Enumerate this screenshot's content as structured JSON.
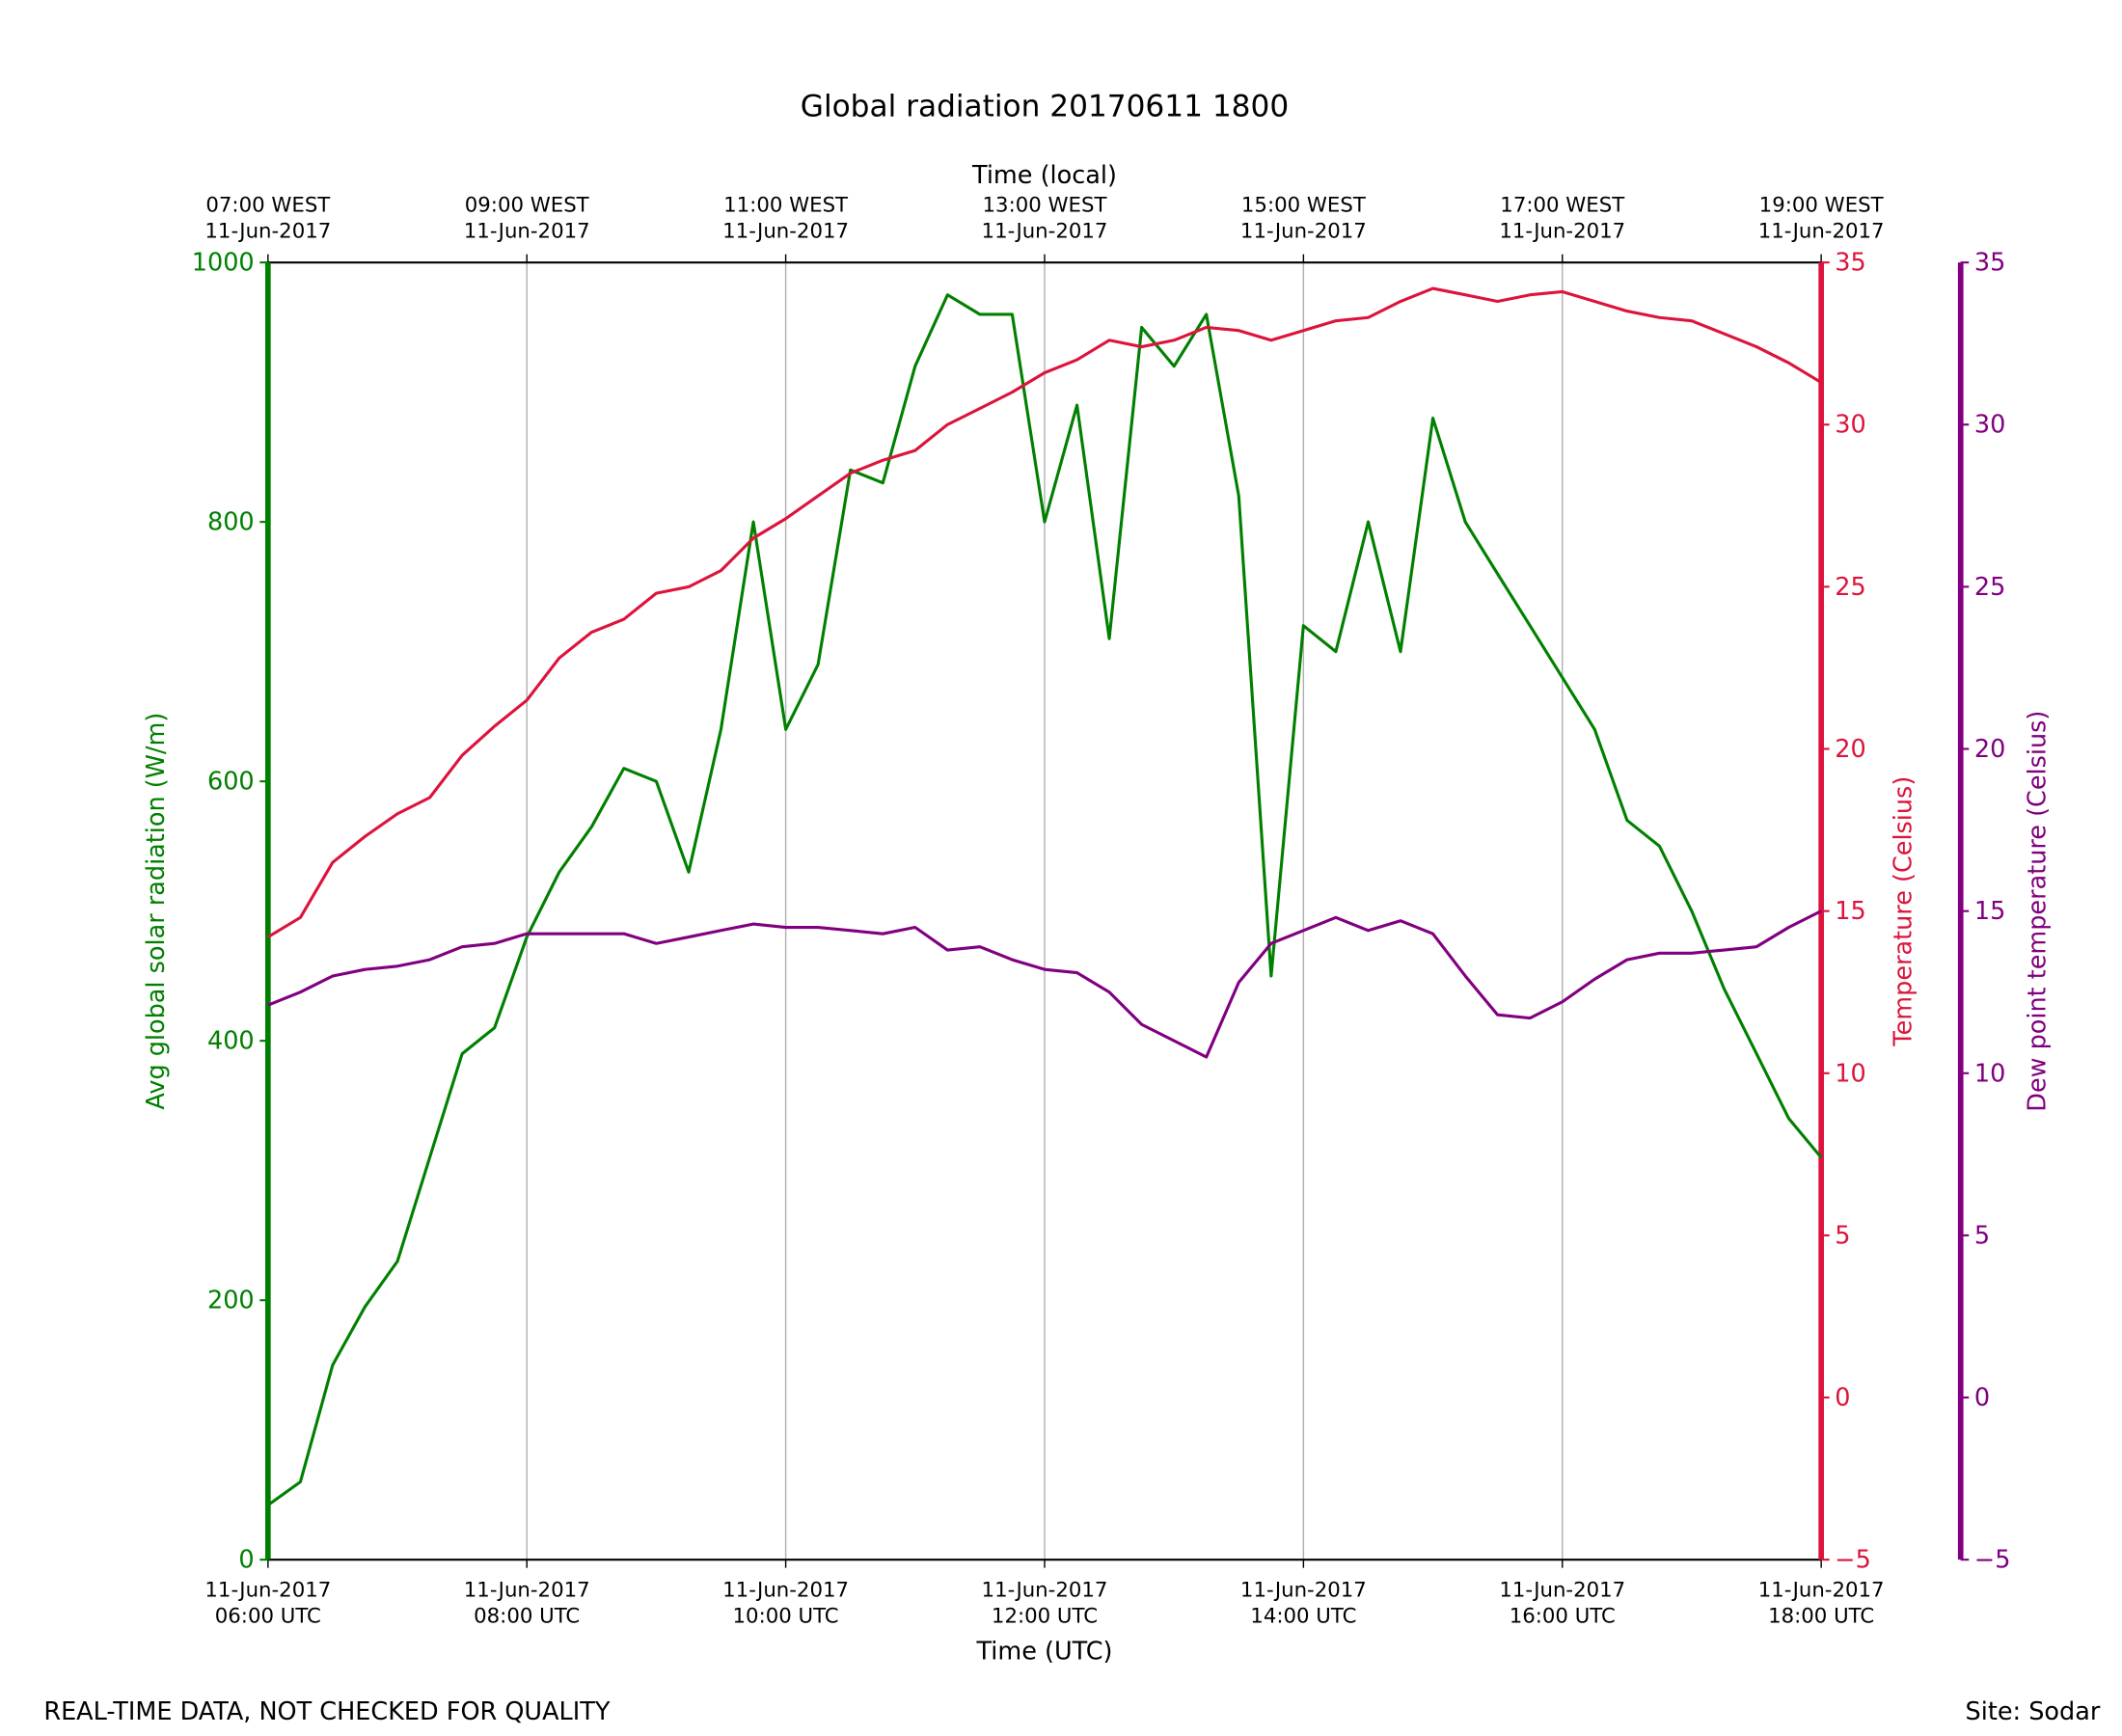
{
  "chart_data": {
    "type": "line",
    "title": "Global radiation 20170611 1800",
    "xlabel": "Time (UTC)",
    "x2label": "Time (local)",
    "ylabel": "Avg global solar radiation (W/m)",
    "y2label": "Temperature (Celsius)",
    "y3label": "Dew point temperature (Celsius)",
    "footer_left": "REAL-TIME DATA, NOT CHECKED FOR QUALITY",
    "footer_right": "Site: Sodar",
    "grid": "x",
    "ycolor": "#008000",
    "y2color": "#dc143c",
    "y3color": "#800080",
    "xlim": [
      "2017-06-11T06:00",
      "2017-06-11T18:00"
    ],
    "xticks": [
      {
        "value": "2017-06-11T06:00",
        "label": "11-Jun-2017 06:00 UTC"
      },
      {
        "value": "2017-06-11T08:00",
        "label": "11-Jun-2017 08:00 UTC"
      },
      {
        "value": "2017-06-11T10:00",
        "label": "11-Jun-2017 10:00 UTC"
      },
      {
        "value": "2017-06-11T12:00",
        "label": "11-Jun-2017 12:00 UTC"
      },
      {
        "value": "2017-06-11T14:00",
        "label": "11-Jun-2017 14:00 UTC"
      },
      {
        "value": "2017-06-11T16:00",
        "label": "11-Jun-2017 16:00 UTC"
      },
      {
        "value": "2017-06-11T18:00",
        "label": "11-Jun-2017 18:00 UTC"
      }
    ],
    "x2ticks": [
      {
        "value": "2017-06-11T06:00",
        "label": "07:00 WEST 11-Jun-2017"
      },
      {
        "value": "2017-06-11T08:00",
        "label": "09:00 WEST 11-Jun-2017"
      },
      {
        "value": "2017-06-11T10:00",
        "label": "11:00 WEST 11-Jun-2017"
      },
      {
        "value": "2017-06-11T12:00",
        "label": "13:00 WEST 11-Jun-2017"
      },
      {
        "value": "2017-06-11T14:00",
        "label": "15:00 WEST 11-Jun-2017"
      },
      {
        "value": "2017-06-11T16:00",
        "label": "17:00 WEST 11-Jun-2017"
      },
      {
        "value": "2017-06-11T18:00",
        "label": "19:00 WEST 11-Jun-2017"
      }
    ],
    "ylim": [
      0,
      1000
    ],
    "yticks": [
      0,
      200,
      400,
      600,
      800,
      1000
    ],
    "y2lim": [
      -5,
      35
    ],
    "y2ticks": [
      {
        "value": -5,
        "label": "−5"
      },
      0,
      5,
      10,
      15,
      20,
      25,
      30,
      35
    ],
    "y3lim": [
      -5,
      35
    ],
    "y3ticks": [
      {
        "value": -5,
        "label": "−5"
      },
      0,
      5,
      10,
      15,
      20,
      25,
      30,
      35
    ],
    "x": [
      "2017-06-11T06:00",
      "2017-06-11T06:15",
      "2017-06-11T06:30",
      "2017-06-11T06:45",
      "2017-06-11T07:00",
      "2017-06-11T07:15",
      "2017-06-11T07:30",
      "2017-06-11T07:45",
      "2017-06-11T08:00",
      "2017-06-11T08:15",
      "2017-06-11T08:30",
      "2017-06-11T08:45",
      "2017-06-11T09:00",
      "2017-06-11T09:15",
      "2017-06-11T09:30",
      "2017-06-11T09:45",
      "2017-06-11T10:00",
      "2017-06-11T10:15",
      "2017-06-11T10:30",
      "2017-06-11T10:45",
      "2017-06-11T11:00",
      "2017-06-11T11:15",
      "2017-06-11T11:30",
      "2017-06-11T11:45",
      "2017-06-11T12:00",
      "2017-06-11T12:15",
      "2017-06-11T12:30",
      "2017-06-11T12:45",
      "2017-06-11T13:00",
      "2017-06-11T13:15",
      "2017-06-11T13:30",
      "2017-06-11T13:45",
      "2017-06-11T14:00",
      "2017-06-11T14:15",
      "2017-06-11T14:30",
      "2017-06-11T14:45",
      "2017-06-11T15:00",
      "2017-06-11T15:15",
      "2017-06-11T15:30",
      "2017-06-11T15:45",
      "2017-06-11T16:00",
      "2017-06-11T16:15",
      "2017-06-11T16:30",
      "2017-06-11T16:45",
      "2017-06-11T17:00",
      "2017-06-11T17:15",
      "2017-06-11T17:30",
      "2017-06-11T17:45",
      "2017-06-11T18:00"
    ],
    "series": [
      {
        "name": "Avg global solar radiation",
        "color": "#008000",
        "axis": "y",
        "values": [
          42,
          60,
          150,
          195,
          230,
          310,
          390,
          410,
          480,
          530,
          565,
          610,
          600,
          530,
          640,
          800,
          640,
          690,
          840,
          830,
          920,
          975,
          960,
          960,
          800,
          890,
          710,
          950,
          920,
          960,
          820,
          450,
          720,
          700,
          800,
          700,
          880,
          800,
          760,
          720,
          680,
          640,
          570,
          550,
          500,
          440,
          390,
          340,
          310
        ]
      },
      {
        "name": "Temperature",
        "color": "#dc143c",
        "axis": "y2",
        "values": [
          14.2,
          14.8,
          16.5,
          17.3,
          18,
          18.5,
          19.8,
          20.7,
          21.5,
          22.8,
          23.6,
          24,
          24.8,
          25,
          25.5,
          26.5,
          27.1,
          27.8,
          28.5,
          28.9,
          29.2,
          30,
          30.5,
          31,
          31.6,
          32,
          32.6,
          32.4,
          32.6,
          33,
          32.9,
          32.6,
          32.9,
          33.2,
          33.3,
          33.8,
          34.2,
          34,
          33.8,
          34,
          34.1,
          33.8,
          33.5,
          33.3,
          33.2,
          32.8,
          32.4,
          31.9,
          31.3
        ]
      },
      {
        "name": "Dew point temperature",
        "color": "#800080",
        "axis": "y3",
        "values": [
          12.1,
          12.5,
          13,
          13.2,
          13.3,
          13.5,
          13.9,
          14,
          14.3,
          14.3,
          14.3,
          14.3,
          14,
          14.2,
          14.4,
          14.6,
          14.5,
          14.5,
          14.4,
          14.3,
          14.5,
          13.8,
          13.9,
          13.5,
          13.2,
          13.1,
          12.5,
          11.5,
          11,
          10.5,
          12.8,
          14,
          14.4,
          14.8,
          14.4,
          14.7,
          14.3,
          13,
          11.8,
          11.7,
          12.2,
          12.9,
          13.5,
          13.7,
          13.7,
          13.8,
          13.9,
          14.5,
          15
        ]
      }
    ]
  }
}
